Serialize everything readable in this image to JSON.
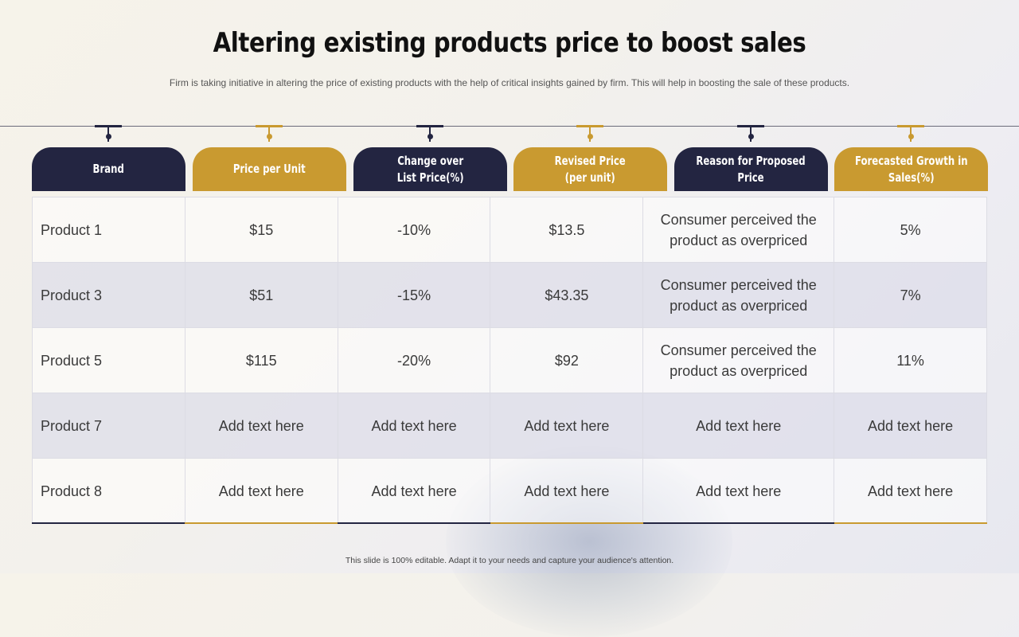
{
  "title": "Altering existing products price to boost sales",
  "subtitle": "Firm is taking initiative in altering the price of existing products with the help of critical insights gained by firm. This will help in boosting the sale of these products.",
  "columns": [
    {
      "label": "Brand",
      "theme": "navy"
    },
    {
      "label": "Price per Unit",
      "theme": "gold"
    },
    {
      "label": "Change over\nList Price(%)",
      "theme": "navy"
    },
    {
      "label": "Revised Price\n(per unit)",
      "theme": "gold"
    },
    {
      "label": "Reason for Proposed\nPrice",
      "theme": "navy"
    },
    {
      "label": "Forecasted Growth in\nSales(%)",
      "theme": "gold"
    }
  ],
  "rows": [
    [
      "Product 1",
      "$15",
      "-10%",
      "$13.5",
      "Consumer perceived the product as overpriced",
      "5%"
    ],
    [
      "Product 3",
      "$51",
      "-15%",
      "$43.35",
      "Consumer perceived the product as overpriced",
      "7%"
    ],
    [
      "Product 5",
      "$115",
      "-20%",
      "$92",
      "Consumer perceived the product as overpriced",
      "11%"
    ],
    [
      "Product 7",
      "Add text here",
      "Add text here",
      "Add text here",
      "Add text here",
      "Add text here"
    ],
    [
      "Product 8",
      "Add text here",
      "Add text here",
      "Add text here",
      "Add text here",
      "Add text here"
    ]
  ],
  "footer": "This slide is 100% editable. Adapt it to your needs and capture your audience's attention.",
  "colors": {
    "navy": "#232541",
    "gold": "#c99a30"
  }
}
